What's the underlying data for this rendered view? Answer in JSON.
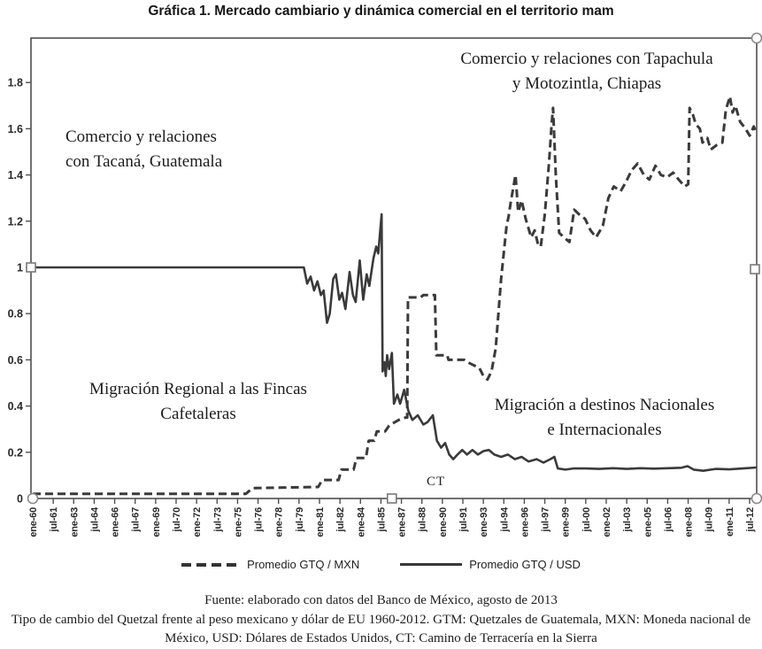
{
  "title": "Gráfica 1. Mercado cambiario y dinámica comercial en el territorio mam",
  "annotations": {
    "tacana_line1": "Comercio y relaciones",
    "tacana_line2": "con Tacaná, Guatemala",
    "tapachula_line1": "Comercio y relaciones con Tapachula",
    "tapachula_line2": "y Motozintla, Chiapas",
    "fincas_line1": "Migración Regional a las Fincas",
    "fincas_line2": "Cafetaleras",
    "nacionales_line1": "Migración a destinos Nacionales",
    "nacionales_line2": "e Internacionales",
    "ct": "CT"
  },
  "legend": {
    "mxn_label": "Promedio GTQ / MXN",
    "usd_label": "Promedio GTQ / USD"
  },
  "footer": {
    "source": "Fuente: elaborado con datos del Banco de México, agosto de 2013",
    "caption": "Tipo de cambio del Quetzal frente al peso mexicano y dólar de EU 1960-2012. GTM: Quetzales de Guatemala, MXN: Moneda nacional de México, USD: Dólares de Estados Unidos, CT: Camino de Terracería en la Sierra"
  },
  "colors": {
    "line": "#3a3a3a",
    "axis": "#4f4f4f",
    "handle_stroke": "#8a8a8a",
    "text": "#1d1d1d"
  },
  "chart_data": {
    "type": "line",
    "title": "Gráfica 1. Mercado cambiario y dinámica comercial en el territorio mam",
    "xlabel": "",
    "ylabel": "",
    "grid": false,
    "legend_position": "bottom",
    "x_axis": {
      "unit": "mes-año",
      "range_years": [
        1960,
        2013
      ],
      "ticks": [
        "ene-60",
        "jul-61",
        "ene-63",
        "jul-64",
        "ene-66",
        "jul-67",
        "ene-69",
        "jul-70",
        "ene-72",
        "jul-73",
        "ene-75",
        "jul-76",
        "ene-78",
        "jul-79",
        "ene-81",
        "jul-82",
        "ene-84",
        "jul-85",
        "ene-87",
        "jul-88",
        "ene-90",
        "jul-91",
        "ene-93",
        "jul-94",
        "ene-96",
        "jul-97",
        "ene-99",
        "jul-00",
        "ene-02",
        "jul-03",
        "ene-05",
        "jul-06",
        "ene-08",
        "jul-09",
        "ene-11",
        "jul-12"
      ]
    },
    "y_axis": {
      "range": [
        0,
        2
      ],
      "ticks": [
        "0",
        "0.2",
        "0.4",
        "0.6",
        "0.8",
        "1",
        "1.2",
        "1.4",
        "1.6",
        "1.8"
      ]
    },
    "series": [
      {
        "name": "Promedio GTQ / MXN",
        "style": "dashed",
        "points": [
          [
            1960.0,
            0.02
          ],
          [
            1975.6,
            0.02
          ],
          [
            1975.8,
            0.03
          ],
          [
            1976.1,
            0.045
          ],
          [
            1980.9,
            0.05
          ],
          [
            1981.2,
            0.08
          ],
          [
            1982.4,
            0.08
          ],
          [
            1982.6,
            0.125
          ],
          [
            1983.5,
            0.125
          ],
          [
            1983.7,
            0.175
          ],
          [
            1984.4,
            0.175
          ],
          [
            1984.6,
            0.25
          ],
          [
            1985.0,
            0.25
          ],
          [
            1985.2,
            0.29
          ],
          [
            1985.8,
            0.29
          ],
          [
            1986.1,
            0.315
          ],
          [
            1986.5,
            0.33
          ],
          [
            1986.8,
            0.34
          ],
          [
            1987.3,
            0.35
          ],
          [
            1987.42,
            0.35
          ],
          [
            1987.48,
            0.87
          ],
          [
            1988.4,
            0.87
          ],
          [
            1988.6,
            0.88
          ],
          [
            1989.45,
            0.88
          ],
          [
            1989.55,
            0.62
          ],
          [
            1990.35,
            0.62
          ],
          [
            1990.45,
            0.6
          ],
          [
            1991.6,
            0.6
          ],
          [
            1992.0,
            0.585
          ],
          [
            1992.7,
            0.565
          ],
          [
            1993.0,
            0.53
          ],
          [
            1993.3,
            0.515
          ],
          [
            1993.6,
            0.55
          ],
          [
            1993.9,
            0.65
          ],
          [
            1994.3,
            0.95
          ],
          [
            1994.7,
            1.18
          ],
          [
            1994.85,
            1.22
          ],
          [
            1995.0,
            1.28
          ],
          [
            1995.35,
            1.4
          ],
          [
            1995.55,
            1.24
          ],
          [
            1995.8,
            1.29
          ],
          [
            1996.1,
            1.21
          ],
          [
            1996.5,
            1.13
          ],
          [
            1996.75,
            1.16
          ],
          [
            1997.0,
            1.1
          ],
          [
            1997.2,
            1.09
          ],
          [
            1997.5,
            1.23
          ],
          [
            1997.8,
            1.45
          ],
          [
            1998.0,
            1.62
          ],
          [
            1998.1,
            1.69
          ],
          [
            1998.3,
            1.4
          ],
          [
            1998.55,
            1.15
          ],
          [
            1998.9,
            1.13
          ],
          [
            1999.3,
            1.11
          ],
          [
            1999.65,
            1.25
          ],
          [
            2000.0,
            1.23
          ],
          [
            2000.45,
            1.21
          ],
          [
            2000.85,
            1.16
          ],
          [
            2001.25,
            1.13
          ],
          [
            2001.75,
            1.18
          ],
          [
            2002.15,
            1.3
          ],
          [
            2002.55,
            1.35
          ],
          [
            2003.05,
            1.33
          ],
          [
            2003.45,
            1.37
          ],
          [
            2003.85,
            1.42
          ],
          [
            2004.3,
            1.45
          ],
          [
            2004.75,
            1.4
          ],
          [
            2005.15,
            1.38
          ],
          [
            2005.6,
            1.44
          ],
          [
            2006.0,
            1.4
          ],
          [
            2006.45,
            1.39
          ],
          [
            2006.9,
            1.41
          ],
          [
            2007.3,
            1.38
          ],
          [
            2007.75,
            1.35
          ],
          [
            2008.0,
            1.36
          ],
          [
            2008.1,
            1.69
          ],
          [
            2008.35,
            1.66
          ],
          [
            2008.55,
            1.62
          ],
          [
            2008.85,
            1.6
          ],
          [
            2009.05,
            1.54
          ],
          [
            2009.4,
            1.56
          ],
          [
            2009.65,
            1.51
          ],
          [
            2010.1,
            1.53
          ],
          [
            2010.5,
            1.54
          ],
          [
            2010.75,
            1.68
          ],
          [
            2011.05,
            1.74
          ],
          [
            2011.25,
            1.67
          ],
          [
            2011.45,
            1.7
          ],
          [
            2011.8,
            1.63
          ],
          [
            2012.2,
            1.6
          ],
          [
            2012.5,
            1.57
          ],
          [
            2012.8,
            1.61
          ],
          [
            2013.0,
            1.58
          ]
        ]
      },
      {
        "name": "Promedio GTQ / USD",
        "style": "solid",
        "points": [
          [
            1960.0,
            1.0
          ],
          [
            1979.85,
            1.0
          ],
          [
            1980.1,
            0.93
          ],
          [
            1980.35,
            0.96
          ],
          [
            1980.6,
            0.9
          ],
          [
            1980.85,
            0.94
          ],
          [
            1981.1,
            0.88
          ],
          [
            1981.3,
            0.9
          ],
          [
            1981.55,
            0.76
          ],
          [
            1981.75,
            0.8
          ],
          [
            1982.0,
            0.95
          ],
          [
            1982.2,
            0.97
          ],
          [
            1982.45,
            0.86
          ],
          [
            1982.65,
            0.89
          ],
          [
            1982.9,
            0.82
          ],
          [
            1983.2,
            0.98
          ],
          [
            1983.45,
            0.88
          ],
          [
            1983.65,
            0.85
          ],
          [
            1983.95,
            1.03
          ],
          [
            1984.2,
            0.86
          ],
          [
            1984.45,
            0.97
          ],
          [
            1984.65,
            0.92
          ],
          [
            1984.95,
            1.04
          ],
          [
            1985.15,
            1.09
          ],
          [
            1985.3,
            1.06
          ],
          [
            1985.55,
            1.23
          ],
          [
            1985.62,
            0.55
          ],
          [
            1985.75,
            0.59
          ],
          [
            1985.85,
            0.53
          ],
          [
            1985.95,
            0.62
          ],
          [
            1986.1,
            0.56
          ],
          [
            1986.3,
            0.63
          ],
          [
            1986.45,
            0.41
          ],
          [
            1986.7,
            0.45
          ],
          [
            1986.9,
            0.41
          ],
          [
            1987.2,
            0.47
          ],
          [
            1987.5,
            0.38
          ],
          [
            1987.8,
            0.34
          ],
          [
            1988.2,
            0.36
          ],
          [
            1988.6,
            0.32
          ],
          [
            1988.9,
            0.33
          ],
          [
            1989.3,
            0.36
          ],
          [
            1989.6,
            0.25
          ],
          [
            1989.9,
            0.22
          ],
          [
            1990.2,
            0.24
          ],
          [
            1990.5,
            0.19
          ],
          [
            1990.8,
            0.17
          ],
          [
            1991.1,
            0.19
          ],
          [
            1991.45,
            0.21
          ],
          [
            1991.8,
            0.19
          ],
          [
            1992.2,
            0.21
          ],
          [
            1992.6,
            0.19
          ],
          [
            1993.0,
            0.205
          ],
          [
            1993.4,
            0.21
          ],
          [
            1993.8,
            0.19
          ],
          [
            1994.3,
            0.18
          ],
          [
            1994.8,
            0.19
          ],
          [
            1995.3,
            0.17
          ],
          [
            1995.8,
            0.18
          ],
          [
            1996.3,
            0.16
          ],
          [
            1996.9,
            0.17
          ],
          [
            1997.4,
            0.155
          ],
          [
            1997.9,
            0.17
          ],
          [
            1998.2,
            0.18
          ],
          [
            1998.45,
            0.13
          ],
          [
            1999.0,
            0.125
          ],
          [
            1999.6,
            0.13
          ],
          [
            2000.5,
            0.13
          ],
          [
            2001.5,
            0.128
          ],
          [
            2002.5,
            0.131
          ],
          [
            2003.5,
            0.128
          ],
          [
            2004.5,
            0.131
          ],
          [
            2005.5,
            0.129
          ],
          [
            2006.5,
            0.131
          ],
          [
            2007.5,
            0.133
          ],
          [
            2007.95,
            0.14
          ],
          [
            2008.4,
            0.125
          ],
          [
            2009.1,
            0.12
          ],
          [
            2010.0,
            0.128
          ],
          [
            2011.0,
            0.126
          ],
          [
            2012.0,
            0.13
          ],
          [
            2013.0,
            0.134
          ]
        ]
      }
    ],
    "event_marker": {
      "label": "CT",
      "x_year": 1986.3
    }
  }
}
